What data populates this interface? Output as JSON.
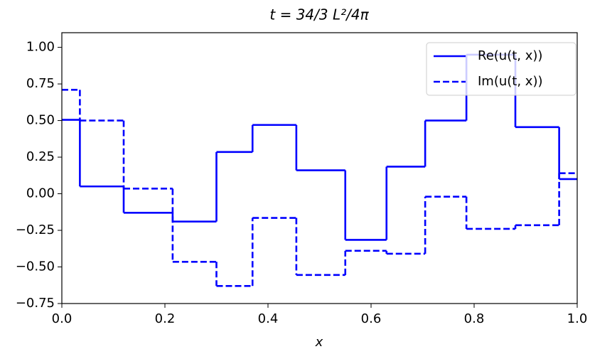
{
  "chart_data": {
    "type": "step",
    "drawstyle": "steps-post",
    "title": "t = 34/3 L²/4π",
    "xlabel": "x",
    "x": [
      0,
      0.035,
      0.12,
      0.215,
      0.3,
      0.37,
      0.455,
      0.55,
      0.63,
      0.705,
      0.785,
      0.88,
      0.965
    ],
    "series": [
      {
        "name": "Re(u(t, x))",
        "color": "#0000ff",
        "linestyle": "solid",
        "values": [
          0.505,
          0.05,
          -0.13,
          -0.19,
          0.285,
          0.47,
          0.16,
          -0.315,
          0.185,
          0.5,
          0.95,
          0.455,
          0.1
        ]
      },
      {
        "name": "Im(u(t, x))",
        "color": "#0000ff",
        "linestyle": "dashed",
        "values": [
          0.71,
          0.5,
          0.035,
          -0.465,
          -0.63,
          -0.165,
          -0.555,
          -0.39,
          -0.41,
          -0.02,
          -0.24,
          -0.215,
          0.14
        ]
      }
    ],
    "xlim": [
      0,
      1
    ],
    "ylim": [
      -0.75,
      1.1
    ],
    "xticks": [
      {
        "value": 0,
        "label": "0.0"
      },
      0.2,
      0.4,
      0.6,
      0.8,
      {
        "value": 1,
        "label": "1.0"
      }
    ],
    "yticks": [
      {
        "value": -0.75,
        "label": "−0.75"
      },
      {
        "value": -0.5,
        "label": "−0.50"
      },
      {
        "value": -0.25,
        "label": "−0.25"
      },
      {
        "value": 0,
        "label": "0.00"
      },
      {
        "value": 0.25,
        "label": "0.25"
      },
      {
        "value": 0.5,
        "label": "0.50"
      },
      {
        "value": 0.75,
        "label": "0.75"
      },
      {
        "value": 1,
        "label": "1.00"
      }
    ],
    "grid": false,
    "legend": "upper right"
  }
}
